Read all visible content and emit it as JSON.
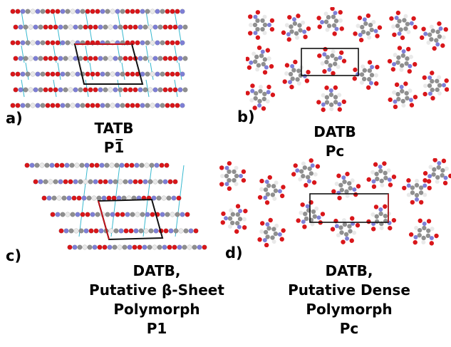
{
  "panels": [
    {
      "letter": "a)",
      "lines": [
        "TATB",
        "P1̅"
      ]
    },
    {
      "letter": "b)",
      "lines": [
        "DATB",
        "Pc"
      ]
    },
    {
      "letter": "c)",
      "lines": [
        "DATB,",
        "Putative β-Sheet",
        "Polymorph",
        "P1"
      ]
    },
    {
      "letter": "d)",
      "lines": [
        "DATB,",
        "Putative Dense",
        "Polymorph",
        "Pc"
      ]
    }
  ],
  "colors": {
    "oxygen": "#d9161a",
    "nitrogen": "#7e7fd6",
    "carbon": "#8f8f8f",
    "hydrogen": "#e9e9e9",
    "hbond": "#36b8cf",
    "cell_a": "#111111",
    "cell_b": "#c0131b"
  }
}
